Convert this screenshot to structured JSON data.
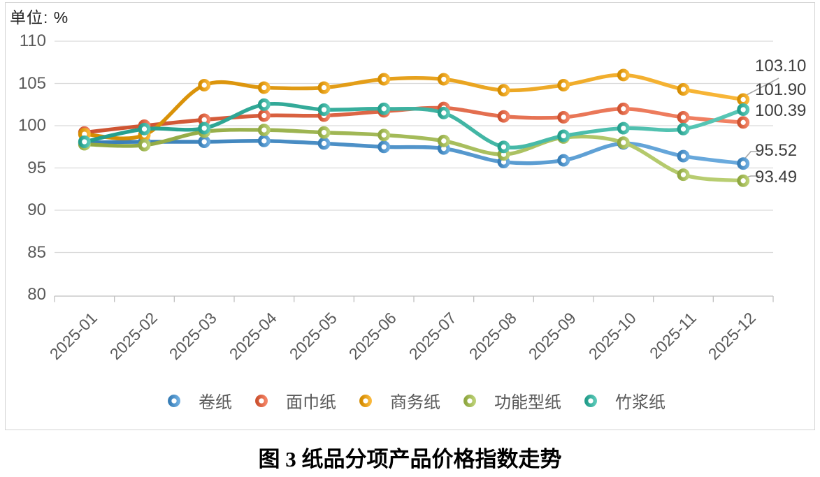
{
  "unit_label": "单位: %",
  "caption": "图 3 纸品分项产品价格指数走势",
  "colors": {
    "grid": "#dadada",
    "axis": "#bfbfbf",
    "axis_text": "#595959",
    "data_label_text": "#3f3f3f",
    "leader_line": "#a6a6a6"
  },
  "chart_data": {
    "type": "line",
    "title": "图 3 纸品分项产品价格指数走势",
    "unit": "%",
    "categories": [
      "2025-01",
      "2025-02",
      "2025-03",
      "2025-04",
      "2025-05",
      "2025-06",
      "2025-07",
      "2025-08",
      "2025-09",
      "2025-10",
      "2025-11",
      "2025-12"
    ],
    "series": [
      {
        "name": "卷纸",
        "color": "#4193d5",
        "values": [
          98.0,
          98.1,
          98.1,
          98.2,
          97.9,
          97.5,
          97.3,
          95.7,
          95.9,
          97.9,
          96.4,
          95.52
        ]
      },
      {
        "name": "面巾纸",
        "color": "#ee5f38",
        "values": [
          99.2,
          100.0,
          100.7,
          101.2,
          101.2,
          101.7,
          102.1,
          101.1,
          101.0,
          102.0,
          101.0,
          100.39
        ]
      },
      {
        "name": "商务纸",
        "color": "#f7a301",
        "values": [
          99.0,
          98.9,
          104.8,
          104.5,
          104.5,
          105.5,
          105.5,
          104.2,
          104.8,
          106.0,
          104.3,
          103.1
        ]
      },
      {
        "name": "功能型纸",
        "color": "#a6c24c",
        "values": [
          97.8,
          97.7,
          99.3,
          99.5,
          99.2,
          98.9,
          98.2,
          96.6,
          98.6,
          98.0,
          94.2,
          93.49
        ]
      },
      {
        "name": "竹浆纸",
        "color": "#29b7a2",
        "values": [
          98.1,
          99.6,
          99.7,
          102.5,
          101.9,
          102.0,
          101.5,
          97.5,
          98.8,
          99.7,
          99.6,
          101.9
        ]
      }
    ],
    "end_labels": [
      {
        "text": "103.10",
        "series": "商务纸"
      },
      {
        "text": "101.90",
        "series": "竹浆纸"
      },
      {
        "text": "100.39",
        "series": "面巾纸"
      },
      {
        "text": "95.52",
        "series": "卷纸"
      },
      {
        "text": "93.49",
        "series": "功能型纸"
      }
    ],
    "ylim": [
      80,
      110
    ],
    "yticks": [
      110,
      105,
      100,
      95,
      90,
      85,
      80
    ],
    "grid": true,
    "legend_position": "bottom",
    "smooth_lines": true
  }
}
